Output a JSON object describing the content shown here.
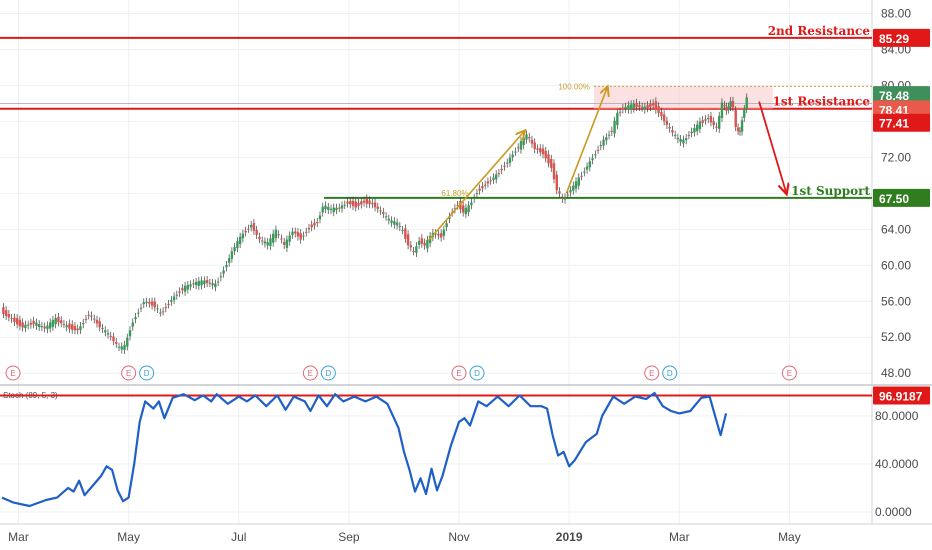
{
  "chart_data": [
    {
      "type": "line",
      "name": "price",
      "y_ticks": [
        "88.00",
        "84.00",
        "80.00",
        "76.00",
        "72.00",
        "68.00",
        "64.00",
        "60.00",
        "56.00",
        "52.00",
        "48.00"
      ],
      "ylim": [
        46.8,
        89.5
      ],
      "x_labels": [
        {
          "label": "Mar",
          "m": 0
        },
        {
          "label": "May",
          "m": 2
        },
        {
          "label": "Jul",
          "m": 4
        },
        {
          "label": "Sep",
          "m": 6
        },
        {
          "label": "Nov",
          "m": 8
        },
        {
          "label": "2019",
          "m": 10
        },
        {
          "label": "Mar",
          "m": 12
        },
        {
          "label": "May",
          "m": 14
        }
      ],
      "xlim_month": [
        -0.3,
        15.5
      ],
      "price": [
        [
          -0.3,
          55.0
        ],
        [
          -0.1,
          54.0
        ],
        [
          0.1,
          53.2
        ],
        [
          0.3,
          53.6
        ],
        [
          0.5,
          53.0
        ],
        [
          0.7,
          54.0
        ],
        [
          0.9,
          53.2
        ],
        [
          1.1,
          52.8
        ],
        [
          1.3,
          54.6
        ],
        [
          1.5,
          53.2
        ],
        [
          1.7,
          52.0
        ],
        [
          1.85,
          50.8
        ],
        [
          1.95,
          51.0
        ],
        [
          2.1,
          53.8
        ],
        [
          2.3,
          56.0
        ],
        [
          2.5,
          55.5
        ],
        [
          2.6,
          54.6
        ],
        [
          2.8,
          56.2
        ],
        [
          3.0,
          57.4
        ],
        [
          3.2,
          58.0
        ],
        [
          3.4,
          58.2
        ],
        [
          3.6,
          57.8
        ],
        [
          3.75,
          59.5
        ],
        [
          3.9,
          61.5
        ],
        [
          4.0,
          62.6
        ],
        [
          4.1,
          63.5
        ],
        [
          4.25,
          64.5
        ],
        [
          4.4,
          62.8
        ],
        [
          4.55,
          62.4
        ],
        [
          4.7,
          63.8
        ],
        [
          4.85,
          62.2
        ],
        [
          5.0,
          63.8
        ],
        [
          5.15,
          63.0
        ],
        [
          5.3,
          64.2
        ],
        [
          5.45,
          64.8
        ],
        [
          5.55,
          66.6
        ],
        [
          5.7,
          66.2
        ],
        [
          5.85,
          66.4
        ],
        [
          6.0,
          67.0
        ],
        [
          6.15,
          66.6
        ],
        [
          6.3,
          67.1
        ],
        [
          6.45,
          66.8
        ],
        [
          6.6,
          66.0
        ],
        [
          6.75,
          65.0
        ],
        [
          6.9,
          64.6
        ],
        [
          7.0,
          63.8
        ],
        [
          7.1,
          62.4
        ],
        [
          7.2,
          61.4
        ],
        [
          7.3,
          62.8
        ],
        [
          7.4,
          62.2
        ],
        [
          7.55,
          63.6
        ],
        [
          7.7,
          63.2
        ],
        [
          7.85,
          65.6
        ],
        [
          8.0,
          66.8
        ],
        [
          8.1,
          66.0
        ],
        [
          8.2,
          66.5
        ],
        [
          8.35,
          68.2
        ],
        [
          8.5,
          69.0
        ],
        [
          8.7,
          70.0
        ],
        [
          8.9,
          71.5
        ],
        [
          9.1,
          73.2
        ],
        [
          9.25,
          74.5
        ],
        [
          9.4,
          73.0
        ],
        [
          9.55,
          72.5
        ],
        [
          9.7,
          71.0
        ],
        [
          9.8,
          68.5
        ],
        [
          9.9,
          67.2
        ],
        [
          10.0,
          68.0
        ],
        [
          10.2,
          69.6
        ],
        [
          10.4,
          71.5
        ],
        [
          10.6,
          73.5
        ],
        [
          10.8,
          75.0
        ],
        [
          10.9,
          76.8
        ],
        [
          11.0,
          77.5
        ],
        [
          11.2,
          77.8
        ],
        [
          11.4,
          77.5
        ],
        [
          11.55,
          77.9
        ],
        [
          11.7,
          76.6
        ],
        [
          11.85,
          75.1
        ],
        [
          12.0,
          74.0
        ],
        [
          12.1,
          73.8
        ],
        [
          12.2,
          74.6
        ],
        [
          12.4,
          75.8
        ],
        [
          12.55,
          76.4
        ],
        [
          12.7,
          75.2
        ],
        [
          12.8,
          78.0
        ],
        [
          12.88,
          77.2
        ],
        [
          12.95,
          78.2
        ],
        [
          13.0,
          77.6
        ],
        [
          13.05,
          75.2
        ],
        [
          13.12,
          74.8
        ],
        [
          13.2,
          77.5
        ],
        [
          13.25,
          78.6
        ]
      ],
      "levels": [
        {
          "label": "2nd Resistance",
          "value": 85.29,
          "tag": "85.29"
        },
        {
          "label": "1st Resistance",
          "value": 77.41,
          "tag": "77.41"
        },
        {
          "label": "1st Support",
          "value": 67.5,
          "tag": "67.50"
        }
      ],
      "price_tags": [
        {
          "tag": "78.48",
          "value": 78.48,
          "color": "#3f8f5a"
        },
        {
          "tag": "78.41",
          "value": 77.9,
          "color": "#ea5a4a"
        }
      ],
      "fib_labels": [
        "100.00%",
        "61.80%"
      ],
      "fib_values": [
        79.9,
        67.5
      ],
      "events": [
        {
          "m": -0.1,
          "items": [
            "E"
          ]
        },
        {
          "m": 2.0,
          "items": [
            "E",
            "D"
          ]
        },
        {
          "m": 5.3,
          "items": [
            "E",
            "D"
          ]
        },
        {
          "m": 8.0,
          "items": [
            "E",
            "D"
          ]
        },
        {
          "m": 11.5,
          "items": [
            "E",
            "D"
          ]
        },
        {
          "m": 14.0,
          "items": [
            "E"
          ]
        }
      ]
    },
    {
      "type": "line",
      "name": "stochastic",
      "title": "Stoch (89, 5, 3)",
      "y_ticks": [
        "80.0000",
        "40.0000",
        "0.0000"
      ],
      "ylim": [
        -10,
        104
      ],
      "level": {
        "value": 96.9187,
        "tag": "96.9187"
      },
      "stoch": [
        [
          -0.3,
          12
        ],
        [
          -0.1,
          8
        ],
        [
          0.2,
          5
        ],
        [
          0.5,
          10
        ],
        [
          0.7,
          12
        ],
        [
          0.9,
          20
        ],
        [
          1.0,
          17
        ],
        [
          1.1,
          26
        ],
        [
          1.2,
          14
        ],
        [
          1.35,
          22
        ],
        [
          1.5,
          30
        ],
        [
          1.6,
          38
        ],
        [
          1.7,
          35
        ],
        [
          1.8,
          18
        ],
        [
          1.9,
          9
        ],
        [
          2.0,
          12
        ],
        [
          2.1,
          40
        ],
        [
          2.2,
          75
        ],
        [
          2.3,
          92
        ],
        [
          2.45,
          86
        ],
        [
          2.55,
          92
        ],
        [
          2.65,
          78
        ],
        [
          2.8,
          95
        ],
        [
          3.0,
          98
        ],
        [
          3.2,
          93
        ],
        [
          3.35,
          97
        ],
        [
          3.5,
          92
        ],
        [
          3.6,
          98
        ],
        [
          3.8,
          90
        ],
        [
          4.0,
          96
        ],
        [
          4.15,
          92
        ],
        [
          4.3,
          97
        ],
        [
          4.5,
          88
        ],
        [
          4.7,
          97
        ],
        [
          4.85,
          85
        ],
        [
          5.0,
          96
        ],
        [
          5.2,
          92
        ],
        [
          5.3,
          84
        ],
        [
          5.45,
          97
        ],
        [
          5.6,
          88
        ],
        [
          5.75,
          98
        ],
        [
          5.9,
          92
        ],
        [
          6.1,
          96
        ],
        [
          6.3,
          92
        ],
        [
          6.5,
          96
        ],
        [
          6.7,
          90
        ],
        [
          6.9,
          70
        ],
        [
          7.0,
          50
        ],
        [
          7.1,
          35
        ],
        [
          7.2,
          17
        ],
        [
          7.3,
          28
        ],
        [
          7.4,
          15
        ],
        [
          7.5,
          36
        ],
        [
          7.6,
          18
        ],
        [
          7.7,
          30
        ],
        [
          7.85,
          55
        ],
        [
          8.0,
          75
        ],
        [
          8.1,
          78
        ],
        [
          8.2,
          72
        ],
        [
          8.35,
          92
        ],
        [
          8.5,
          88
        ],
        [
          8.7,
          96
        ],
        [
          8.9,
          88
        ],
        [
          9.1,
          97
        ],
        [
          9.3,
          88
        ],
        [
          9.5,
          88
        ],
        [
          9.6,
          86
        ],
        [
          9.7,
          64
        ],
        [
          9.8,
          47
        ],
        [
          9.9,
          50
        ],
        [
          10.0,
          38
        ],
        [
          10.1,
          43
        ],
        [
          10.3,
          58
        ],
        [
          10.5,
          65
        ],
        [
          10.6,
          80
        ],
        [
          10.8,
          96
        ],
        [
          11.0,
          90
        ],
        [
          11.2,
          96
        ],
        [
          11.4,
          94
        ],
        [
          11.55,
          99
        ],
        [
          11.7,
          88
        ],
        [
          11.85,
          84
        ],
        [
          12.0,
          82
        ],
        [
          12.2,
          84
        ],
        [
          12.4,
          95
        ],
        [
          12.55,
          96
        ],
        [
          12.7,
          72
        ],
        [
          12.75,
          64
        ],
        [
          12.85,
          82
        ]
      ]
    }
  ],
  "colors": {
    "resistance": "#e01818",
    "support": "#2f7d1e",
    "stoch_line": "#1f5fc8",
    "fib": "#c8a030",
    "arrow_up": "#c89a20",
    "arrow_down": "#e01818"
  }
}
